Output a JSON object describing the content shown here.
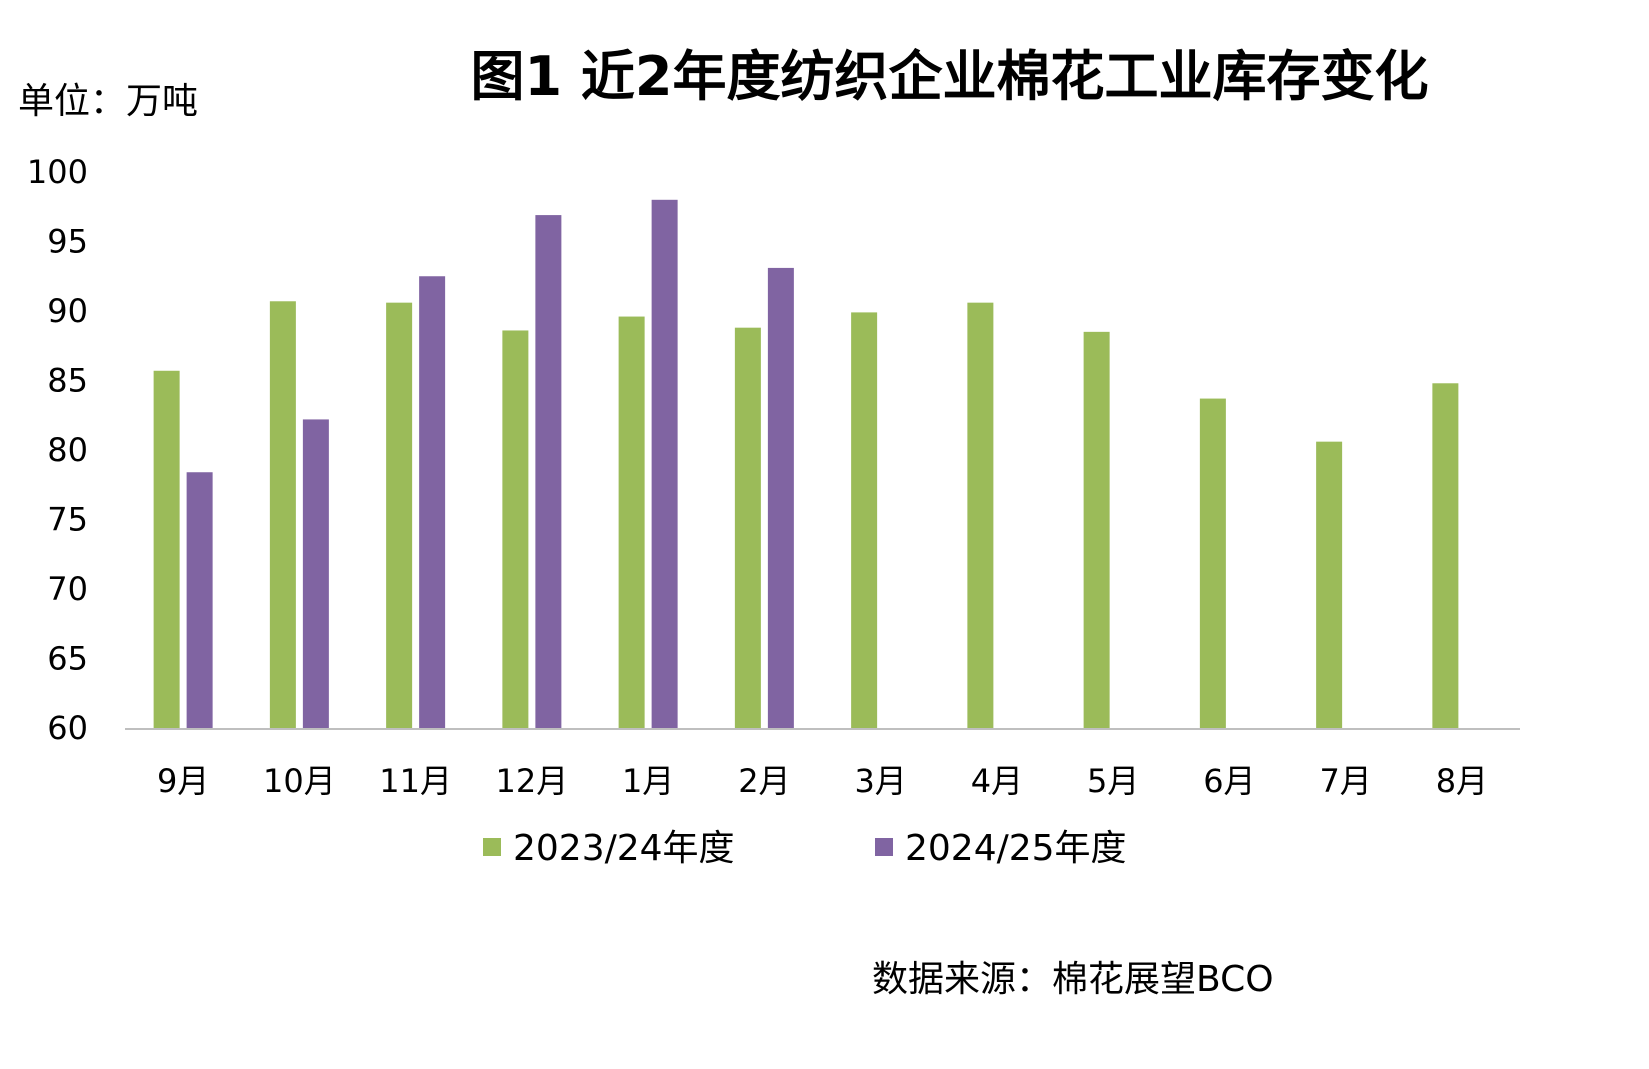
{
  "title": "图1  近2年度纺织企业棉花工业库存变化",
  "unit_label": "单位：万吨",
  "source_label": "数据来源：棉花展望BCO",
  "colors": {
    "series_1": "#9BBB59",
    "series_2": "#8064A2",
    "axis": "#BFBFBF"
  },
  "chart_data": {
    "type": "bar",
    "title": "图1  近2年度纺织企业棉花工业库存变化",
    "xlabel": "",
    "ylabel": "单位：万吨",
    "ylim": [
      60,
      100
    ],
    "yticks": [
      100,
      95,
      90,
      85,
      80,
      75,
      70,
      65,
      60
    ],
    "categories": [
      "9月",
      "10月",
      "11月",
      "12月",
      "1月",
      "2月",
      "3月",
      "4月",
      "5月",
      "6月",
      "7月",
      "8月"
    ],
    "series": [
      {
        "name": "2023/24年度",
        "values": [
          85.7,
          90.7,
          90.6,
          88.6,
          89.6,
          88.8,
          89.9,
          90.6,
          88.5,
          83.7,
          80.6,
          84.8
        ]
      },
      {
        "name": "2024/25年度",
        "values": [
          78.4,
          82.2,
          92.5,
          96.9,
          98.0,
          93.1,
          null,
          null,
          null,
          null,
          null,
          null
        ]
      }
    ],
    "grid": false,
    "legend": "bottom"
  }
}
